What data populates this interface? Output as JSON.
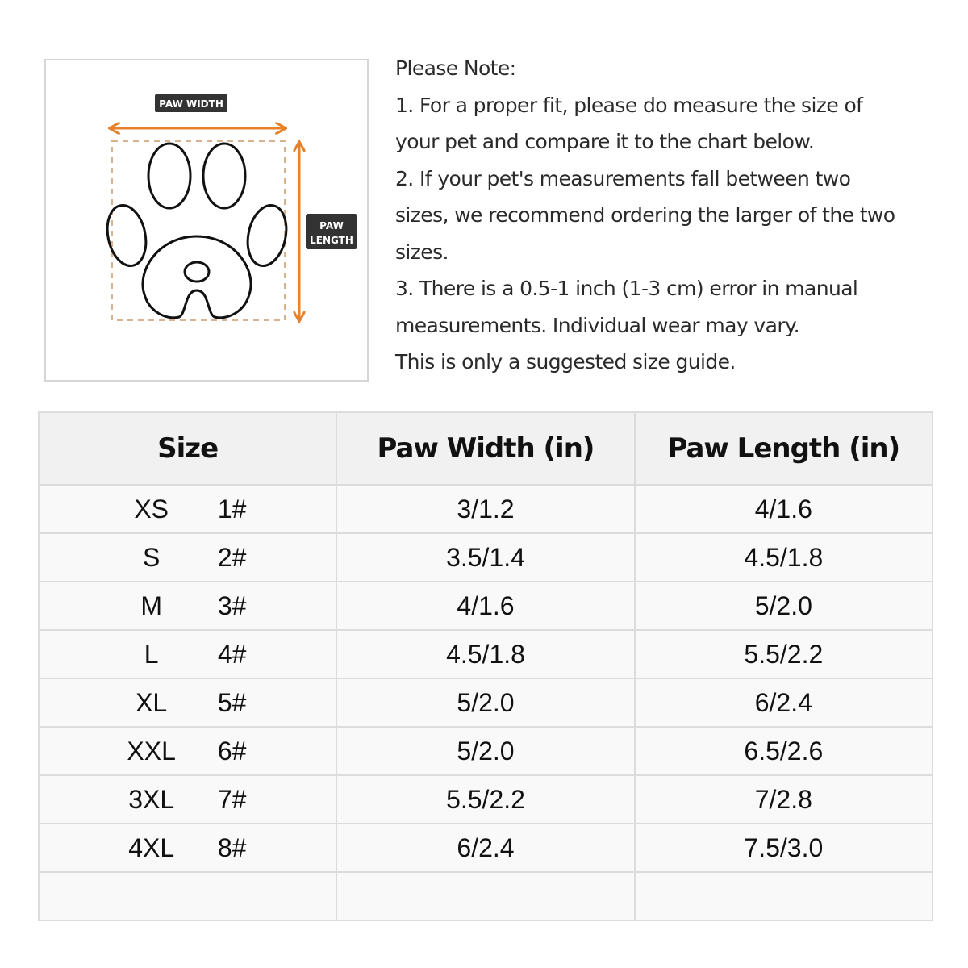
{
  "diagram": {
    "width_label": "PAW WIDTH",
    "length_label": "PAW LENGTH",
    "accent": "#e8822a",
    "icon": "paw-print-icon"
  },
  "note": {
    "lines": [
      "Please Note:",
      "1. For a proper fit, please do measure the size of",
      "your pet and compare it to the chart below.",
      "2. If your pet's measurements fall between two",
      "sizes, we recommend ordering the larger of the two",
      "sizes.",
      "3. There is a 0.5-1 inch (1-3 cm) error in manual",
      "measurements. Individual wear may vary.",
      "This is only a suggested size guide."
    ]
  },
  "table": {
    "headers": [
      "Size",
      "Paw Width (in)",
      "Paw Length (in)"
    ],
    "rows": [
      {
        "size": "XS",
        "num": "1#",
        "width": "3/1.2",
        "length": "4/1.6"
      },
      {
        "size": "S",
        "num": "2#",
        "width": "3.5/1.4",
        "length": "4.5/1.8"
      },
      {
        "size": "M",
        "num": "3#",
        "width": "4/1.6",
        "length": "5/2.0"
      },
      {
        "size": "L",
        "num": "4#",
        "width": "4.5/1.8",
        "length": "5.5/2.2"
      },
      {
        "size": "XL",
        "num": "5#",
        "width": "5/2.0",
        "length": "6/2.4"
      },
      {
        "size": "XXL",
        "num": "6#",
        "width": "5/2.0",
        "length": "6.5/2.6"
      },
      {
        "size": "3XL",
        "num": "7#",
        "width": "5.5/2.2",
        "length": "7/2.8"
      },
      {
        "size": "4XL",
        "num": "8#",
        "width": "6/2.4",
        "length": "7.5/3.0"
      }
    ]
  }
}
